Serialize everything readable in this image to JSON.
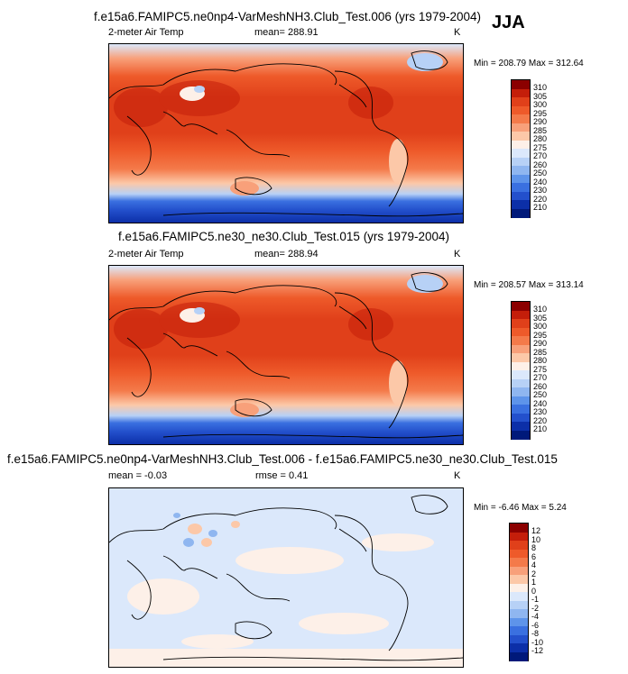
{
  "season": "JJA",
  "panels": [
    {
      "title": "f.e15a6.FAMIPC5.ne0np4-VarMeshNH3.Club_Test.006 (yrs 1979-2004)",
      "left_label": "2-meter Air Temp",
      "center_label": "mean= 288.91",
      "units": "K",
      "minmax": "Min = 208.79 Max = 312.64",
      "colorbar_levels": [
        "310",
        "305",
        "300",
        "295",
        "290",
        "285",
        "280",
        "275",
        "270",
        "260",
        "250",
        "240",
        "230",
        "220",
        "210"
      ],
      "colorbar_colors": [
        "#8b0000",
        "#c41e0a",
        "#e0401a",
        "#ee5a2a",
        "#f47a4a",
        "#f8a07a",
        "#fcc8a8",
        "#fdf0e8",
        "#dbe8fb",
        "#b7d1f6",
        "#8fb6f0",
        "#5e94ea",
        "#3a70e0",
        "#2350cc",
        "#0c2fa8",
        "#00197a"
      ]
    },
    {
      "title": "f.e15a6.FAMIPC5.ne30_ne30.Club_Test.015 (yrs 1979-2004)",
      "left_label": "2-meter Air Temp",
      "center_label": "mean= 288.94",
      "units": "K",
      "minmax": "Min = 208.57 Max = 313.14",
      "colorbar_levels": [
        "310",
        "305",
        "300",
        "295",
        "290",
        "285",
        "280",
        "275",
        "270",
        "260",
        "250",
        "240",
        "230",
        "220",
        "210"
      ],
      "colorbar_colors": [
        "#8b0000",
        "#c41e0a",
        "#e0401a",
        "#ee5a2a",
        "#f47a4a",
        "#f8a07a",
        "#fcc8a8",
        "#fdf0e8",
        "#dbe8fb",
        "#b7d1f6",
        "#8fb6f0",
        "#5e94ea",
        "#3a70e0",
        "#2350cc",
        "#0c2fa8",
        "#00197a"
      ]
    },
    {
      "title": "f.e15a6.FAMIPC5.ne0np4-VarMeshNH3.Club_Test.006 - f.e15a6.FAMIPC5.ne30_ne30.Club_Test.015",
      "left_label": "mean =  -0.03",
      "center_label": "rmse =   0.41",
      "units": "K",
      "minmax": "Min = -6.46 Max =   5.24",
      "colorbar_levels": [
        "12",
        "10",
        "8",
        "6",
        "4",
        "2",
        "1",
        "0",
        "-1",
        "-2",
        "-4",
        "-6",
        "-8",
        "-10",
        "-12"
      ],
      "colorbar_colors": [
        "#8b0000",
        "#c41e0a",
        "#e0401a",
        "#ee5a2a",
        "#f47a4a",
        "#f8a07a",
        "#fcc8a8",
        "#fdf0e8",
        "#dbe8fb",
        "#b7d1f6",
        "#8fb6f0",
        "#5e94ea",
        "#3a70e0",
        "#2350cc",
        "#0c2fa8",
        "#00197a"
      ]
    }
  ]
}
